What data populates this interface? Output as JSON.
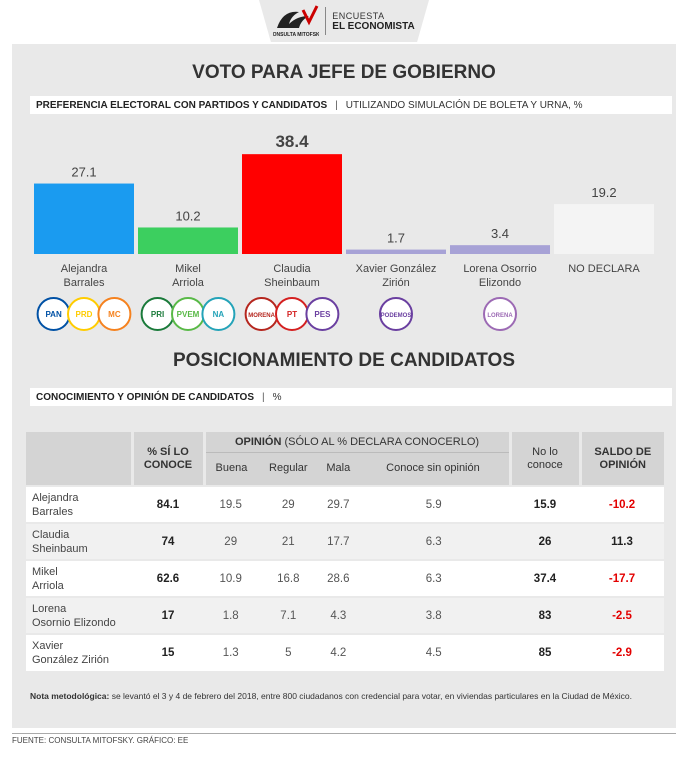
{
  "header": {
    "brand": "CONSULTA MITOFSKY",
    "line1": "ENCUESTA",
    "line2": "EL ECONOMISTA"
  },
  "section1": {
    "title": "VOTO PARA JEFE DE GOBIERNO",
    "subtitle_bold": "PREFERENCIA ELECTORAL CON PARTIDOS Y CANDIDATOS",
    "subtitle_rest": "UTILIZANDO SIMULACIÓN DE BOLETA Y URNA, %"
  },
  "chart_data": {
    "type": "bar",
    "categories": [
      [
        "Alejandra",
        "Barrales"
      ],
      [
        "Mikel",
        "Arriola"
      ],
      [
        "Claudia",
        "Sheinbaum"
      ],
      [
        "Xavier González",
        "Zirión"
      ],
      [
        "Lorena Osorrio",
        "Elizondo"
      ],
      [
        "NO DECLARA"
      ]
    ],
    "values": [
      27.1,
      10.2,
      38.4,
      1.7,
      3.4,
      19.2
    ],
    "value_labels": [
      "27.1",
      "10.2",
      "38.4",
      "1.7",
      "3.4",
      "19.2"
    ],
    "colors": [
      "#1a9bf0",
      "#3ccf5f",
      "#ff0000",
      "#a7a2d6",
      "#a7a2d6",
      "#f4f4f4"
    ],
    "highlight_index": 2,
    "ylim": [
      0,
      40
    ],
    "party_logos": [
      [
        "PAN",
        "PRD",
        "MC"
      ],
      [
        "PRI",
        "PVEM",
        "NA"
      ],
      [
        "MORENA",
        "PT",
        "PES"
      ],
      [
        "PODEMOS JUNTOS"
      ],
      [
        "LORENA"
      ],
      []
    ]
  },
  "section2": {
    "title": "POSICIONAMIENTO DE CANDIDATOS",
    "subtitle_bold": "CONOCIMIENTO Y OPINIÓN DE CANDIDATOS",
    "subtitle_rest": "%"
  },
  "table": {
    "col_conoce": [
      "% SÍ LO",
      "CONOCE"
    ],
    "opinion_group_bold": "OPINIÓN",
    "opinion_group_rest": " (SÓLO AL % DECLARA CONOCERLO)",
    "opinion_cols": [
      "Buena",
      "Regular",
      "Mala",
      "Conoce sin opinión"
    ],
    "col_no_conoce": [
      "No lo",
      "conoce"
    ],
    "col_saldo": [
      "SALDO DE",
      "OPINIÓN"
    ],
    "rows": [
      {
        "name": [
          "Alejandra",
          "Barrales"
        ],
        "conoce": "84.1",
        "buena": "19.5",
        "regular": "29",
        "mala": "29.7",
        "sin_op": "5.9",
        "no_conoce": "15.9",
        "saldo": "-10.2",
        "neg": true
      },
      {
        "name": [
          "Claudia",
          "Sheinbaum"
        ],
        "conoce": "74",
        "buena": "29",
        "regular": "21",
        "mala": "17.7",
        "sin_op": "6.3",
        "no_conoce": "26",
        "saldo": "11.3",
        "neg": false
      },
      {
        "name": [
          "Mikel",
          "Arriola"
        ],
        "conoce": "62.6",
        "buena": "10.9",
        "regular": "16.8",
        "mala": "28.6",
        "sin_op": "6.3",
        "no_conoce": "37.4",
        "saldo": "-17.7",
        "neg": true
      },
      {
        "name": [
          "Lorena",
          "Osornio Elizondo"
        ],
        "conoce": "17",
        "buena": "1.8",
        "regular": "7.1",
        "mala": "4.3",
        "sin_op": "3.8",
        "no_conoce": "83",
        "saldo": "-2.5",
        "neg": true
      },
      {
        "name": [
          "Xavier",
          "González Zirión"
        ],
        "conoce": "15",
        "buena": "1.3",
        "regular": "5",
        "mala": "4.2",
        "sin_op": "4.5",
        "no_conoce": "85",
        "saldo": "-2.9",
        "neg": true
      }
    ]
  },
  "note": {
    "bold": "Nota metodológica:",
    "text": " se levantó el 3 y 4 de febrero del 2018, entre 800 ciudadanos con credencial para votar, en viviendas particulares en la Ciudad de México."
  },
  "footer": "FUENTE: CONSULTA MITOFSKY. GRÁFICO: EE"
}
